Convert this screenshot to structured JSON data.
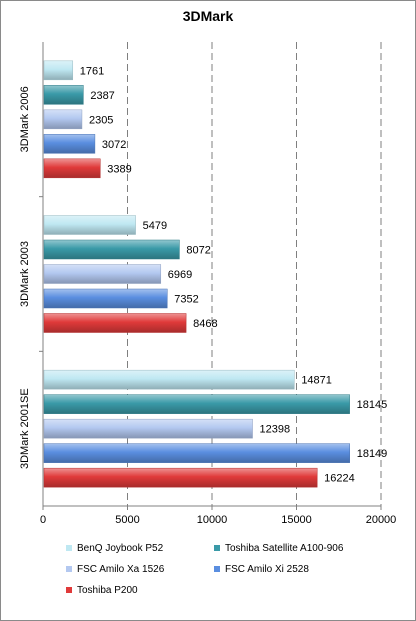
{
  "chart_data": {
    "type": "bar",
    "orientation": "horizontal",
    "title": "3DMark",
    "groups": [
      "3DMark 2006",
      "3DMark 2003",
      "3DMark 2001SE"
    ],
    "series": [
      {
        "name": "BenQ Joybook P52",
        "color": "#bfe8f2",
        "values": [
          1761,
          5479,
          14871
        ]
      },
      {
        "name": "Toshiba Satellite A100-906",
        "color": "#3a9aa8",
        "values": [
          2387,
          8072,
          18145
        ]
      },
      {
        "name": "FSC Amilo Xa 1526",
        "color": "#b3c8f0",
        "values": [
          2305,
          6969,
          12398
        ]
      },
      {
        "name": "FSC Amilo Xi 2528",
        "color": "#5a8ee0",
        "values": [
          3072,
          7352,
          18149
        ]
      },
      {
        "name": "Toshiba P200",
        "color": "#e03a3a",
        "values": [
          3389,
          8468,
          16224
        ]
      }
    ],
    "xlim": [
      0,
      20000
    ],
    "xticks": [
      "0",
      "5000",
      "10000",
      "15000",
      "20000"
    ],
    "grid": true,
    "legend_position": "bottom"
  }
}
